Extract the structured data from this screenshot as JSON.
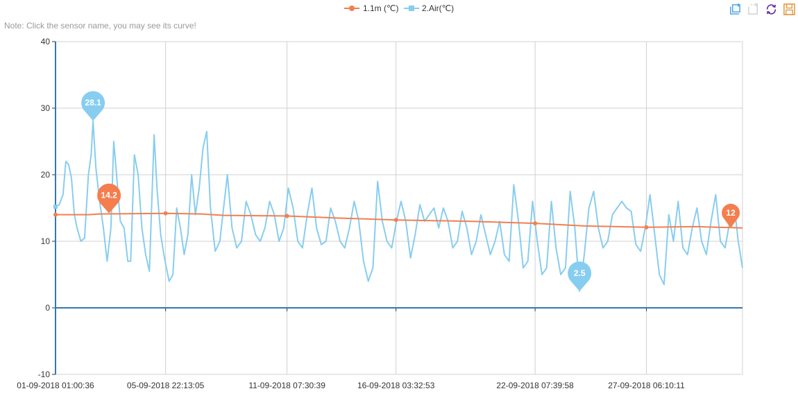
{
  "note": "Note: Click the sensor name, you may see its curve!",
  "toolbox": [
    "zoom-icon",
    "zoom-reset-icon",
    "refresh-icon",
    "save-image-icon"
  ],
  "chart_data": {
    "type": "line",
    "title": "",
    "ylim": [
      -10,
      40
    ],
    "y_ticks": [
      "40",
      "30",
      "20",
      "10",
      "0",
      "-10"
    ],
    "xlim": [
      "2018-09-01 01:00:36",
      "2018-10-01 12:30:00"
    ],
    "x_ticks": [
      "01-09-2018 01:00:36",
      "05-09-2018 22:13:05",
      "11-09-2018 07:30:39",
      "16-09-2018 03:32:53",
      "22-09-2018 07:39:58",
      "27-09-2018 06:10:11"
    ],
    "grid": true,
    "legend": "top-center",
    "series": [
      {
        "name": "1.1m (℃)",
        "color": "#f47e4e",
        "markers": [
          {
            "x": "2018-09-01 01:00:36",
            "y": 14.0
          },
          {
            "x": "2018-09-05 22:13:05",
            "y": 14.2
          },
          {
            "x": "2018-09-11 07:30:39",
            "y": 13.8
          },
          {
            "x": "2018-09-16 03:32:53",
            "y": 13.2
          },
          {
            "x": "2018-09-22 07:39:58",
            "y": 12.7
          },
          {
            "x": "2018-09-27 06:10:11",
            "y": 12.1
          }
        ],
        "points": [
          {
            "x": "2018-09-01 01:00",
            "y": 14.0
          },
          {
            "x": "2018-09-02 12:00",
            "y": 14.0
          },
          {
            "x": "2018-09-03 00:00",
            "y": 14.1
          },
          {
            "x": "2018-09-05 22:00",
            "y": 14.2
          },
          {
            "x": "2018-09-07 12:00",
            "y": 14.1
          },
          {
            "x": "2018-09-08 12:00",
            "y": 13.9
          },
          {
            "x": "2018-09-11 07:30",
            "y": 13.8
          },
          {
            "x": "2018-09-13 12:00",
            "y": 13.5
          },
          {
            "x": "2018-09-16 03:30",
            "y": 13.2
          },
          {
            "x": "2018-09-19 12:00",
            "y": 13.0
          },
          {
            "x": "2018-09-22 07:40",
            "y": 12.7
          },
          {
            "x": "2018-09-24 12:00",
            "y": 12.3
          },
          {
            "x": "2018-09-27 06:10",
            "y": 12.1
          },
          {
            "x": "2018-09-29 12:00",
            "y": 12.2
          },
          {
            "x": "2018-10-01 12:30",
            "y": 12.0
          }
        ],
        "mark_points": [
          {
            "label": "14.2",
            "x": "2018-09-03 10:00",
            "y": 14.2
          },
          {
            "label": "12",
            "x": "2018-10-01 00:00",
            "y": 12.0
          }
        ]
      },
      {
        "name": "2.Air(℃)",
        "color": "#87cdf0",
        "points": [
          {
            "x": "2018-09-01 01:00",
            "y": 15.2
          },
          {
            "x": "2018-09-01 05:00",
            "y": 15.5
          },
          {
            "x": "2018-09-01 09:00",
            "y": 17.0
          },
          {
            "x": "2018-09-01 12:00",
            "y": 22.0
          },
          {
            "x": "2018-09-01 15:00",
            "y": 21.5
          },
          {
            "x": "2018-09-01 18:00",
            "y": 19.5
          },
          {
            "x": "2018-09-01 21:00",
            "y": 14.0
          },
          {
            "x": "2018-09-02 00:00",
            "y": 12.0
          },
          {
            "x": "2018-09-02 04:00",
            "y": 10.0
          },
          {
            "x": "2018-09-02 08:00",
            "y": 10.5
          },
          {
            "x": "2018-09-02 12:00",
            "y": 20.0
          },
          {
            "x": "2018-09-02 15:00",
            "y": 23.0
          },
          {
            "x": "2018-09-02 17:00",
            "y": 28.1
          },
          {
            "x": "2018-09-02 20:00",
            "y": 21.0
          },
          {
            "x": "2018-09-03 00:00",
            "y": 16.0
          },
          {
            "x": "2018-09-03 04:00",
            "y": 12.0
          },
          {
            "x": "2018-09-03 08:00",
            "y": 7.0
          },
          {
            "x": "2018-09-03 12:00",
            "y": 12.0
          },
          {
            "x": "2018-09-03 15:00",
            "y": 25.0
          },
          {
            "x": "2018-09-03 18:00",
            "y": 20.0
          },
          {
            "x": "2018-09-03 22:00",
            "y": 13.0
          },
          {
            "x": "2018-09-04 02:00",
            "y": 12.0
          },
          {
            "x": "2018-09-04 06:00",
            "y": 7.0
          },
          {
            "x": "2018-09-04 09:00",
            "y": 7.0
          },
          {
            "x": "2018-09-04 13:00",
            "y": 23.0
          },
          {
            "x": "2018-09-04 17:00",
            "y": 20.0
          },
          {
            "x": "2018-09-04 21:00",
            "y": 12.0
          },
          {
            "x": "2018-09-05 01:00",
            "y": 8.0
          },
          {
            "x": "2018-09-05 05:00",
            "y": 5.5
          },
          {
            "x": "2018-09-05 10:00",
            "y": 26.0
          },
          {
            "x": "2018-09-05 13:00",
            "y": 18.0
          },
          {
            "x": "2018-09-05 17:00",
            "y": 11.0
          },
          {
            "x": "2018-09-05 21:00",
            "y": 7.5
          },
          {
            "x": "2018-09-06 02:00",
            "y": 4.0
          },
          {
            "x": "2018-09-06 06:00",
            "y": 5.0
          },
          {
            "x": "2018-09-06 10:00",
            "y": 15.0
          },
          {
            "x": "2018-09-06 14:00",
            "y": 12.0
          },
          {
            "x": "2018-09-06 18:00",
            "y": 8.0
          },
          {
            "x": "2018-09-06 22:00",
            "y": 11.0
          },
          {
            "x": "2018-09-07 02:00",
            "y": 20.0
          },
          {
            "x": "2018-09-07 06:00",
            "y": 14.0
          },
          {
            "x": "2018-09-07 10:00",
            "y": 18.0
          },
          {
            "x": "2018-09-07 14:00",
            "y": 24.0
          },
          {
            "x": "2018-09-07 18:00",
            "y": 26.5
          },
          {
            "x": "2018-09-07 22:00",
            "y": 15.0
          },
          {
            "x": "2018-09-08 03:00",
            "y": 8.5
          },
          {
            "x": "2018-09-08 08:00",
            "y": 10.0
          },
          {
            "x": "2018-09-08 12:00",
            "y": 15.0
          },
          {
            "x": "2018-09-08 16:00",
            "y": 20.0
          },
          {
            "x": "2018-09-08 21:00",
            "y": 12.0
          },
          {
            "x": "2018-09-09 02:00",
            "y": 9.0
          },
          {
            "x": "2018-09-09 07:00",
            "y": 10.0
          },
          {
            "x": "2018-09-09 12:00",
            "y": 16.0
          },
          {
            "x": "2018-09-09 17:00",
            "y": 14.0
          },
          {
            "x": "2018-09-09 22:00",
            "y": 11.0
          },
          {
            "x": "2018-09-10 03:00",
            "y": 10.0
          },
          {
            "x": "2018-09-10 08:00",
            "y": 12.0
          },
          {
            "x": "2018-09-10 13:00",
            "y": 16.0
          },
          {
            "x": "2018-09-10 18:00",
            "y": 14.0
          },
          {
            "x": "2018-09-10 23:00",
            "y": 10.0
          },
          {
            "x": "2018-09-11 04:00",
            "y": 12.0
          },
          {
            "x": "2018-09-11 09:00",
            "y": 18.0
          },
          {
            "x": "2018-09-11 14:00",
            "y": 15.0
          },
          {
            "x": "2018-09-11 19:00",
            "y": 10.0
          },
          {
            "x": "2018-09-12 00:00",
            "y": 9.0
          },
          {
            "x": "2018-09-12 05:00",
            "y": 14.0
          },
          {
            "x": "2018-09-12 10:00",
            "y": 18.0
          },
          {
            "x": "2018-09-12 15:00",
            "y": 12.0
          },
          {
            "x": "2018-09-12 20:00",
            "y": 9.5
          },
          {
            "x": "2018-09-13 01:00",
            "y": 10.0
          },
          {
            "x": "2018-09-13 06:00",
            "y": 15.0
          },
          {
            "x": "2018-09-13 11:00",
            "y": 13.0
          },
          {
            "x": "2018-09-13 16:00",
            "y": 10.0
          },
          {
            "x": "2018-09-13 21:00",
            "y": 9.0
          },
          {
            "x": "2018-09-14 02:00",
            "y": 12.0
          },
          {
            "x": "2018-09-14 07:00",
            "y": 16.0
          },
          {
            "x": "2018-09-14 12:00",
            "y": 13.0
          },
          {
            "x": "2018-09-14 17:00",
            "y": 7.0
          },
          {
            "x": "2018-09-14 22:00",
            "y": 4.0
          },
          {
            "x": "2018-09-15 03:00",
            "y": 6.0
          },
          {
            "x": "2018-09-15 08:00",
            "y": 19.0
          },
          {
            "x": "2018-09-15 13:00",
            "y": 13.0
          },
          {
            "x": "2018-09-15 18:00",
            "y": 10.0
          },
          {
            "x": "2018-09-15 23:00",
            "y": 9.0
          },
          {
            "x": "2018-09-16 04:00",
            "y": 13.0
          },
          {
            "x": "2018-09-16 09:00",
            "y": 16.0
          },
          {
            "x": "2018-09-16 14:00",
            "y": 13.0
          },
          {
            "x": "2018-09-16 19:00",
            "y": 7.5
          },
          {
            "x": "2018-09-17 00:00",
            "y": 11.0
          },
          {
            "x": "2018-09-17 05:00",
            "y": 15.5
          },
          {
            "x": "2018-09-17 10:00",
            "y": 13.0
          },
          {
            "x": "2018-09-17 15:00",
            "y": 14.0
          },
          {
            "x": "2018-09-17 20:00",
            "y": 15.0
          },
          {
            "x": "2018-09-18 01:00",
            "y": 12.0
          },
          {
            "x": "2018-09-18 06:00",
            "y": 15.0
          },
          {
            "x": "2018-09-18 11:00",
            "y": 13.0
          },
          {
            "x": "2018-09-18 16:00",
            "y": 9.0
          },
          {
            "x": "2018-09-18 21:00",
            "y": 10.0
          },
          {
            "x": "2018-09-19 02:00",
            "y": 14.5
          },
          {
            "x": "2018-09-19 07:00",
            "y": 12.0
          },
          {
            "x": "2018-09-19 12:00",
            "y": 8.0
          },
          {
            "x": "2018-09-19 17:00",
            "y": 10.0
          },
          {
            "x": "2018-09-19 22:00",
            "y": 14.0
          },
          {
            "x": "2018-09-20 03:00",
            "y": 11.0
          },
          {
            "x": "2018-09-20 08:00",
            "y": 8.0
          },
          {
            "x": "2018-09-20 13:00",
            "y": 10.0
          },
          {
            "x": "2018-09-20 18:00",
            "y": 13.0
          },
          {
            "x": "2018-09-20 23:00",
            "y": 8.0
          },
          {
            "x": "2018-09-21 04:00",
            "y": 7.0
          },
          {
            "x": "2018-09-21 09:00",
            "y": 18.5
          },
          {
            "x": "2018-09-21 14:00",
            "y": 13.0
          },
          {
            "x": "2018-09-21 19:00",
            "y": 6.0
          },
          {
            "x": "2018-09-22 00:00",
            "y": 7.0
          },
          {
            "x": "2018-09-22 05:00",
            "y": 16.0
          },
          {
            "x": "2018-09-22 10:00",
            "y": 10.0
          },
          {
            "x": "2018-09-22 15:00",
            "y": 5.0
          },
          {
            "x": "2018-09-22 20:00",
            "y": 6.0
          },
          {
            "x": "2018-09-23 01:00",
            "y": 16.0
          },
          {
            "x": "2018-09-23 06:00",
            "y": 9.0
          },
          {
            "x": "2018-09-23 11:00",
            "y": 5.0
          },
          {
            "x": "2018-09-23 16:00",
            "y": 6.0
          },
          {
            "x": "2018-09-23 21:00",
            "y": 17.5
          },
          {
            "x": "2018-09-24 02:00",
            "y": 12.0
          },
          {
            "x": "2018-09-24 07:00",
            "y": 2.5
          },
          {
            "x": "2018-09-24 12:00",
            "y": 8.0
          },
          {
            "x": "2018-09-24 17:00",
            "y": 15.0
          },
          {
            "x": "2018-09-24 22:00",
            "y": 17.5
          },
          {
            "x": "2018-09-25 03:00",
            "y": 12.0
          },
          {
            "x": "2018-09-25 08:00",
            "y": 9.0
          },
          {
            "x": "2018-09-25 13:00",
            "y": 10.0
          },
          {
            "x": "2018-09-25 18:00",
            "y": 14.0
          },
          {
            "x": "2018-09-25 23:00",
            "y": 15.0
          },
          {
            "x": "2018-09-26 04:00",
            "y": 16.0
          },
          {
            "x": "2018-09-26 09:00",
            "y": 15.0
          },
          {
            "x": "2018-09-26 14:00",
            "y": 14.5
          },
          {
            "x": "2018-09-26 19:00",
            "y": 9.5
          },
          {
            "x": "2018-09-27 00:00",
            "y": 8.5
          },
          {
            "x": "2018-09-27 05:00",
            "y": 12.0
          },
          {
            "x": "2018-09-27 10:00",
            "y": 17.0
          },
          {
            "x": "2018-09-27 15:00",
            "y": 11.0
          },
          {
            "x": "2018-09-27 20:00",
            "y": 5.0
          },
          {
            "x": "2018-09-28 01:00",
            "y": 3.5
          },
          {
            "x": "2018-09-28 06:00",
            "y": 14.0
          },
          {
            "x": "2018-09-28 11:00",
            "y": 10.0
          },
          {
            "x": "2018-09-28 16:00",
            "y": 16.0
          },
          {
            "x": "2018-09-28 21:00",
            "y": 9.0
          },
          {
            "x": "2018-09-29 02:00",
            "y": 8.0
          },
          {
            "x": "2018-09-29 07:00",
            "y": 12.0
          },
          {
            "x": "2018-09-29 12:00",
            "y": 15.0
          },
          {
            "x": "2018-09-29 17:00",
            "y": 10.0
          },
          {
            "x": "2018-09-29 22:00",
            "y": 8.0
          },
          {
            "x": "2018-09-30 03:00",
            "y": 13.0
          },
          {
            "x": "2018-09-30 08:00",
            "y": 17.0
          },
          {
            "x": "2018-09-30 13:00",
            "y": 10.0
          },
          {
            "x": "2018-09-30 18:00",
            "y": 9.0
          },
          {
            "x": "2018-09-30 23:00",
            "y": 13.0
          },
          {
            "x": "2018-10-01 04:00",
            "y": 15.0
          },
          {
            "x": "2018-10-01 08:00",
            "y": 10.0
          },
          {
            "x": "2018-10-01 12:30",
            "y": 6.0
          }
        ],
        "mark_points": [
          {
            "label": "28.1",
            "x": "2018-09-02 17:00",
            "y": 28.1
          },
          {
            "label": "2.5",
            "x": "2018-09-24 07:00",
            "y": 2.5
          }
        ]
      }
    ]
  }
}
